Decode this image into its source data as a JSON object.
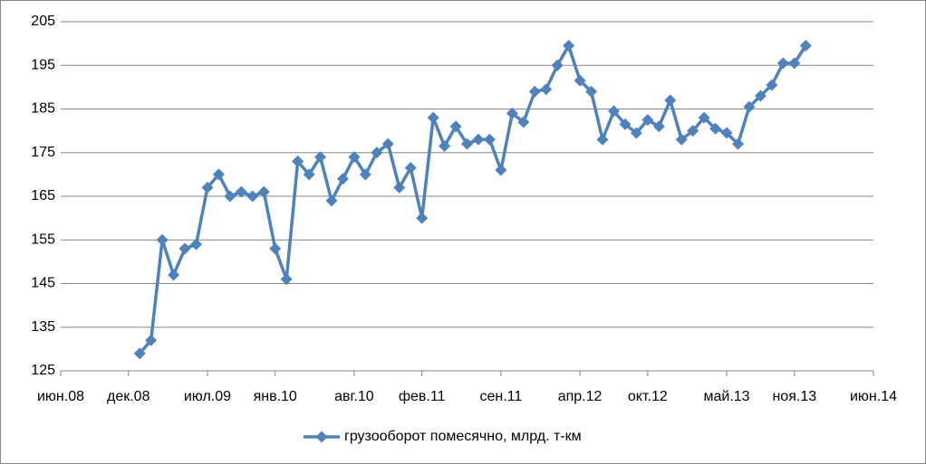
{
  "chart_data": {
    "type": "line",
    "x": [
      "2009-01",
      "2009-02",
      "2009-03",
      "2009-04",
      "2009-05",
      "2009-06",
      "2009-07",
      "2009-08",
      "2009-09",
      "2009-10",
      "2009-11",
      "2009-12",
      "2010-01",
      "2010-02",
      "2010-03",
      "2010-04",
      "2010-05",
      "2010-06",
      "2010-07",
      "2010-08",
      "2010-09",
      "2010-10",
      "2010-11",
      "2010-12",
      "2011-01",
      "2011-02",
      "2011-03",
      "2011-04",
      "2011-05",
      "2011-06",
      "2011-07",
      "2011-08",
      "2011-09",
      "2011-10",
      "2011-11",
      "2011-12",
      "2012-01",
      "2012-02",
      "2012-03",
      "2012-04",
      "2012-05",
      "2012-06",
      "2012-07",
      "2012-08",
      "2012-09",
      "2012-10",
      "2012-11",
      "2012-12",
      "2013-01",
      "2013-02",
      "2013-03",
      "2013-04",
      "2013-05",
      "2013-06",
      "2013-07",
      "2013-08",
      "2013-09",
      "2013-10",
      "2013-11",
      "2013-12"
    ],
    "series": [
      {
        "name": "грузооборот помесячно, млрд. т-км",
        "color": "#4f81bd",
        "values": [
          129,
          132,
          155,
          147,
          153,
          154,
          167,
          170,
          165,
          166,
          165,
          166,
          153,
          146,
          173,
          170,
          174,
          164,
          169,
          174,
          170,
          175,
          177,
          167,
          171.5,
          160,
          183,
          176.5,
          181,
          177,
          178,
          178,
          171,
          184,
          182,
          189,
          189.5,
          195,
          199.5,
          191.5,
          189,
          178,
          184.5,
          181.5,
          179.5,
          182.5,
          181,
          187,
          178,
          180,
          183,
          180.5,
          179.5,
          177,
          185.5,
          188,
          190.5,
          195.5,
          195.5,
          199.5
        ]
      }
    ],
    "xlim": [
      "2008-06",
      "2014-06"
    ],
    "xticks": [
      {
        "value": "2008-06",
        "label": "июн.08"
      },
      {
        "value": "2008-12",
        "label": "дек.08"
      },
      {
        "value": "2009-07",
        "label": "июл.09"
      },
      {
        "value": "2010-01",
        "label": "янв.10"
      },
      {
        "value": "2010-08",
        "label": "авг.10"
      },
      {
        "value": "2011-02",
        "label": "фев.11"
      },
      {
        "value": "2011-09",
        "label": "сен.11"
      },
      {
        "value": "2012-04",
        "label": "апр.12"
      },
      {
        "value": "2012-10",
        "label": "окт.12"
      },
      {
        "value": "2013-05",
        "label": "май.13"
      },
      {
        "value": "2013-11",
        "label": "ноя.13"
      },
      {
        "value": "2014-06",
        "label": "июн.14"
      }
    ],
    "ylim": [
      125,
      205
    ],
    "yticks": [
      125,
      135,
      145,
      155,
      165,
      175,
      185,
      195,
      205
    ],
    "grid": true,
    "legend": "bottom"
  }
}
